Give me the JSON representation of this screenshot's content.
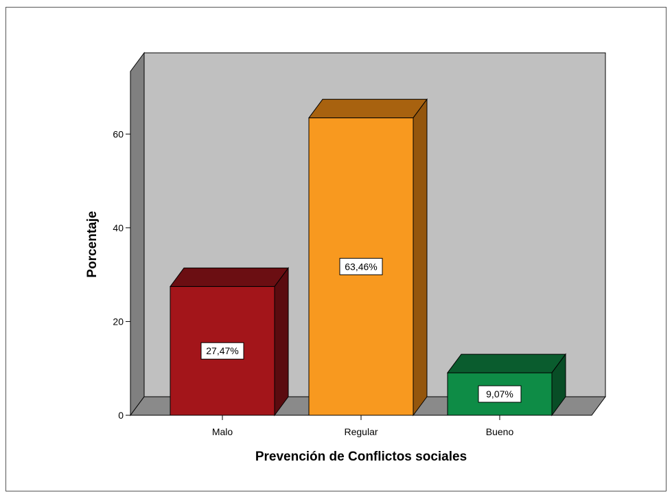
{
  "chart_data": {
    "type": "bar",
    "title": "",
    "xlabel": "Prevención de Conflictos sociales",
    "ylabel": "Porcentaje",
    "categories": [
      "Malo",
      "Regular",
      "Bueno"
    ],
    "values": [
      27.47,
      63.46,
      9.07
    ],
    "value_labels": [
      "27,47%",
      "63,46%",
      "9,07%"
    ],
    "ylim": [
      0,
      73
    ],
    "yticks": [
      0,
      20,
      40,
      60
    ],
    "grid": false,
    "style_3d": true,
    "colors": {
      "bars": [
        {
          "front": "#a3151a",
          "top": "#6b0e12",
          "side": "#5a0b0f"
        },
        {
          "front": "#f8991f",
          "top": "#a8620f",
          "side": "#94560d"
        },
        {
          "front": "#0e8c46",
          "top": "#0a5c2e",
          "side": "#084d26"
        }
      ],
      "plot_background": "#c0c0c0",
      "wall_side": "#808080",
      "floor": "#8a8a8a",
      "frame_border": "#555555"
    }
  }
}
